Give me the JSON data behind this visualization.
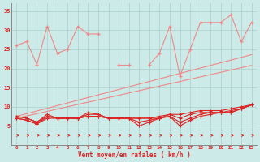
{
  "x": [
    0,
    1,
    2,
    3,
    4,
    5,
    6,
    7,
    8,
    9,
    10,
    11,
    12,
    13,
    14,
    15,
    16,
    17,
    18,
    19,
    20,
    21,
    22,
    23
  ],
  "gust_y": [
    26,
    27,
    21,
    31,
    24,
    25,
    31,
    29,
    29,
    null,
    21,
    21,
    null,
    21,
    24,
    31,
    18,
    25,
    32,
    32,
    32,
    34,
    27,
    32
  ],
  "trend1": [
    7.5,
    8.2,
    8.9,
    9.6,
    10.3,
    11.0,
    11.7,
    12.4,
    13.1,
    13.8,
    14.5,
    15.2,
    15.9,
    16.6,
    17.3,
    18.0,
    18.7,
    19.4,
    20.1,
    20.8,
    21.5,
    22.2,
    22.9,
    23.6
  ],
  "trend2": [
    7.0,
    7.6,
    8.2,
    8.8,
    9.4,
    10.0,
    10.6,
    11.2,
    11.8,
    12.4,
    13.0,
    13.6,
    14.2,
    14.8,
    15.4,
    16.0,
    16.6,
    17.2,
    17.8,
    18.4,
    19.0,
    19.6,
    20.2,
    20.8
  ],
  "low1": [
    7.0,
    6.5,
    5.5,
    7.0,
    7.0,
    7.0,
    7.0,
    8.5,
    8.0,
    7.0,
    7.0,
    7.0,
    5.0,
    6.0,
    7.0,
    7.5,
    5.0,
    6.5,
    7.5,
    8.0,
    8.5,
    8.5,
    9.5,
    10.5
  ],
  "low2": [
    7.0,
    6.5,
    5.5,
    7.5,
    7.0,
    7.0,
    7.0,
    8.0,
    8.0,
    7.0,
    7.0,
    7.0,
    6.0,
    6.5,
    7.0,
    7.5,
    6.0,
    7.0,
    8.0,
    8.5,
    8.5,
    9.0,
    9.5,
    10.5
  ],
  "low3": [
    7.5,
    7.0,
    6.0,
    7.5,
    7.0,
    7.0,
    7.0,
    7.5,
    7.5,
    7.0,
    7.0,
    7.0,
    7.0,
    7.0,
    7.0,
    8.0,
    7.0,
    8.0,
    8.5,
    8.5,
    8.5,
    8.5,
    9.5,
    10.5
  ],
  "low4": [
    7.5,
    7.0,
    6.0,
    8.0,
    7.0,
    7.0,
    7.0,
    7.5,
    7.5,
    7.0,
    7.0,
    7.0,
    7.0,
    7.0,
    7.5,
    8.0,
    8.0,
    8.5,
    9.0,
    9.0,
    9.0,
    9.5,
    10.0,
    10.5
  ],
  "bg_color": "#cceae7",
  "grid_color": "#aacfcc",
  "salmon": "#f08888",
  "red": "#dd2222",
  "xlabel": "Vent moyen/en rafales ( km/h )",
  "yticks": [
    5,
    10,
    15,
    20,
    25,
    30,
    35
  ],
  "ylim": [
    0,
    37
  ],
  "xlim": [
    -0.5,
    23.5
  ]
}
